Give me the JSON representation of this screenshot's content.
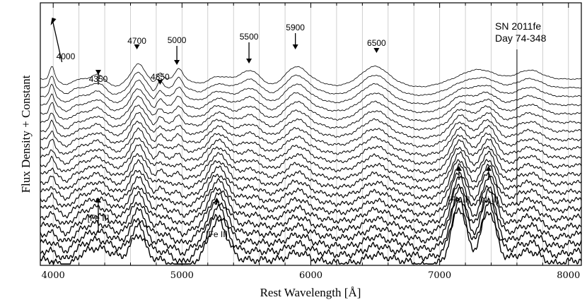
{
  "chart_data": {
    "type": "line",
    "title": "SN 2011fe",
    "subtitle": "Day 74-348",
    "xlabel": "Rest Wavelength [Å]",
    "ylabel": "Flux Density + Constant",
    "xlim": [
      3900,
      8100
    ],
    "xticks": [
      4000,
      5000,
      6000,
      7000,
      8000
    ],
    "x_minor_step": 200,
    "grid": "vertical lines every 200 Å",
    "n_spectra": 22,
    "arrows_down": [
      {
        "label": "4000",
        "x": 3980
      },
      {
        "label": "4350",
        "x": 4350
      },
      {
        "label": "4700",
        "x": 4650
      },
      {
        "label": "4850",
        "x": 4830
      },
      {
        "label": "5000",
        "x": 4960
      },
      {
        "label": "5500",
        "x": 5520
      },
      {
        "label": "5900",
        "x": 5880
      },
      {
        "label": "6500",
        "x": 6510
      }
    ],
    "arrows_up": [
      {
        "label": "[Fe II]",
        "x": 4350
      },
      {
        "label": "[Fe II]",
        "x": 5270
      },
      {
        "label": "[Fe II]",
        "x": 7150
      },
      {
        "label": "[Ni II]",
        "x": 7380
      }
    ]
  }
}
